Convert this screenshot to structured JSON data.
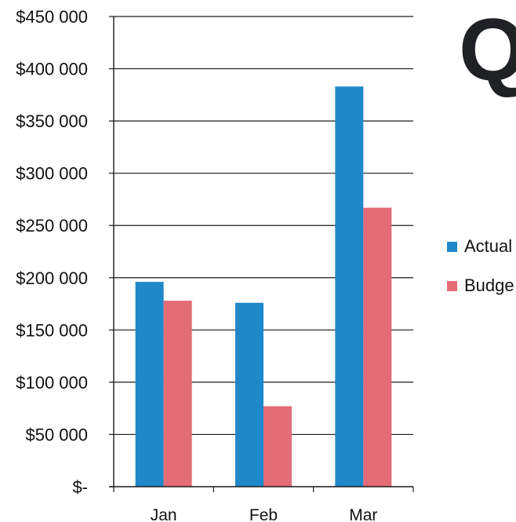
{
  "chart_data": {
    "type": "bar",
    "categories": [
      "Jan",
      "Feb",
      "Mar"
    ],
    "series": [
      {
        "name": "Actual",
        "values": [
          196000,
          176000,
          383000
        ],
        "color": "#1f88c9"
      },
      {
        "name": "Budget",
        "values": [
          178000,
          77000,
          267000
        ],
        "color": "#e36c76"
      }
    ],
    "y_ticks": [
      "$-",
      "$50 000",
      "$100 000",
      "$150 000",
      "$200 000",
      "$250 000",
      "$300 000",
      "$350 000",
      "$400 000",
      "$450 000"
    ],
    "ylim": [
      0,
      450000
    ],
    "grid": true,
    "legend_position": "right",
    "legend_labels": [
      "Actual",
      "Budge"
    ]
  },
  "heading_fragment": "Q"
}
